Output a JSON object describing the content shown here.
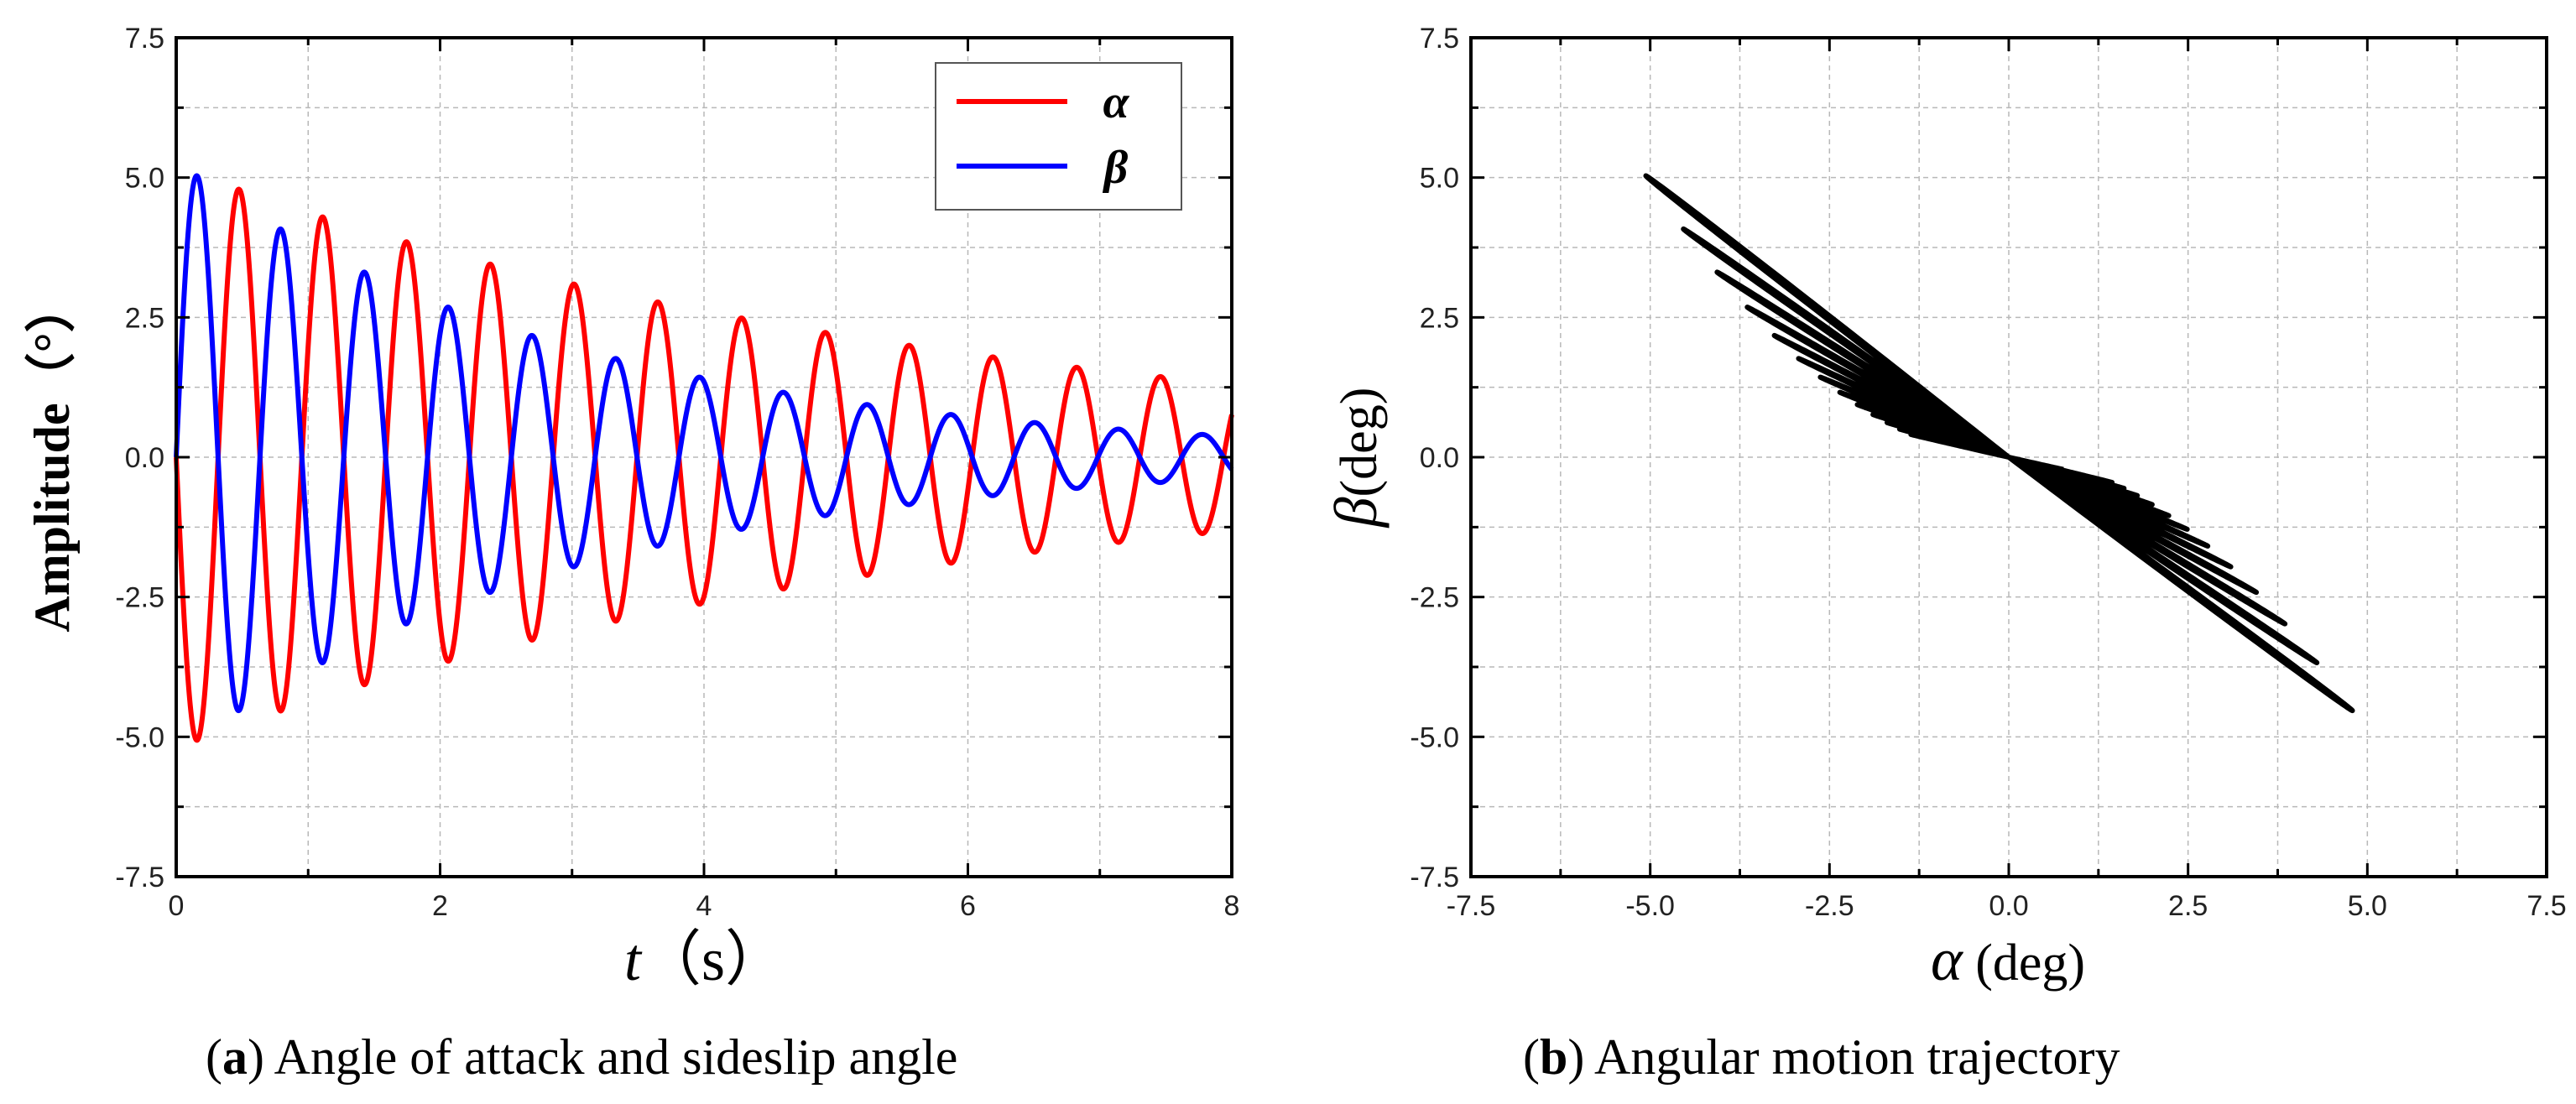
{
  "chart_data": [
    {
      "id": "a",
      "type": "line",
      "title": "",
      "xlabel": "t（s）",
      "xlabel_var": "t",
      "xlabel_unit": "（s）",
      "ylabel": "Amplitude（°）",
      "xlim": [
        0,
        8
      ],
      "ylim": [
        -7.5,
        7.5
      ],
      "xticks": [
        0,
        2,
        4,
        6,
        8
      ],
      "xtick_labels": [
        "0",
        "2",
        "4",
        "6",
        "8"
      ],
      "yticks": [
        -7.5,
        -5.0,
        -2.5,
        0.0,
        2.5,
        5.0,
        7.5
      ],
      "ytick_labels": [
        "-7.5",
        "-5.0",
        "-2.5",
        "0.0",
        "2.5",
        "5.0",
        "7.5"
      ],
      "grid": true,
      "legend_position": "top-right",
      "caption_letter": "a",
      "caption_text": " Angle of attack and sideslip angle",
      "series": [
        {
          "name": "α",
          "color": "#ff0000",
          "model": "damped-sine",
          "amplitude": 5.2,
          "decay": 0.172,
          "period": 0.635,
          "phase": 3.14159,
          "note": "peaks ≈ 4.95 @0.48s, 4.45 @1.12s, 4.0 @1.75s, 3.55 @2.4s, 3.17 @3.03s, 2.83 @3.66s, 2.5 @4.3s, 2.22 @4.94s, 1.95 @5.58s, 1.72 @6.22s, 1.53 @6.86s, 1.33 @7.49s"
        },
        {
          "name": "β",
          "color": "#0000ff",
          "model": "damped-sine",
          "amplitude": 5.3,
          "decay": 0.33,
          "period": 0.635,
          "phase": 0,
          "note": "peaks ≈ 5.1 @0.16s, 4.2 @0.8s, 3.45 @1.43s, 2.85 @2.07s, 2.33 @2.7s, 1.92 @3.34s, 1.55 @3.98s, 1.25 @4.62s, 1.0 @5.26s, 0.8 @5.9s, 0.62 @6.53s, 0.5 @7.17s, 0.38 @7.8s"
        }
      ]
    },
    {
      "id": "b",
      "type": "line",
      "title": "",
      "xlabel": "α (deg)",
      "xlabel_var": "α",
      "xlabel_unit": " (deg)",
      "ylabel": "β (deg)",
      "ylabel_var": "β",
      "ylabel_unit": "(deg)",
      "xlim": [
        -7.5,
        7.5
      ],
      "ylim": [
        -7.5,
        7.5
      ],
      "xticks": [
        -7.5,
        -5.0,
        -2.5,
        0.0,
        2.5,
        5.0,
        7.5
      ],
      "xtick_labels": [
        "-7.5",
        "-5.0",
        "-2.5",
        "0.0",
        "2.5",
        "5.0",
        "7.5"
      ],
      "yticks": [
        -7.5,
        -5.0,
        -2.5,
        0.0,
        2.5,
        5.0,
        7.5
      ],
      "ytick_labels": [
        "-7.5",
        "-5.0",
        "-2.5",
        "0.0",
        "2.5",
        "5.0",
        "7.5"
      ],
      "grid": true,
      "caption_letter": "b",
      "caption_text": " Angular motion trajectory",
      "series": [
        {
          "name": "trajectory",
          "color": "#000000",
          "model": "parametric: x = α(t), y = β(t) from panel (a), t ∈ [0, 8] s",
          "endpoints": [
            [
              -5.15,
              5.1
            ],
            [
              4.95,
              -4.62
            ]
          ]
        }
      ]
    }
  ]
}
